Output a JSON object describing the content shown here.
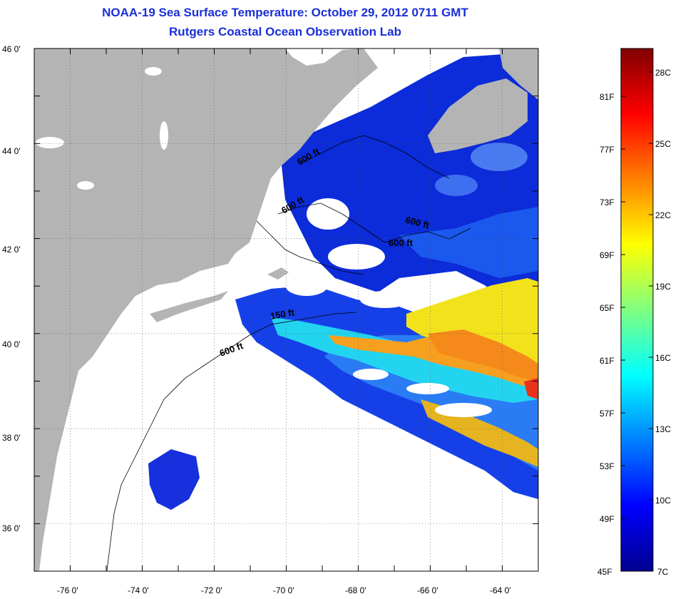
{
  "title": "NOAA-19 Sea Surface Temperature:  October 29, 2012 0711 GMT",
  "subtitle": "Rutgers Coastal Ocean Observation Lab",
  "map": {
    "lon_range": [
      -77,
      -63
    ],
    "lat_range": [
      35,
      46
    ],
    "lon_ticks": [
      "-76 0'",
      "-74 0'",
      "-72 0'",
      "-70 0'",
      "-68 0'",
      "-66 0'",
      "-64 0'"
    ],
    "lat_ticks": [
      "46 0'",
      "44 0'",
      "42 0'",
      "40 0'",
      "38 0'",
      "36 0'"
    ],
    "land_color": "#b4b4b4",
    "cloud_color": "#ffffff",
    "contour_labels": [
      "600 ft",
      "600 ft",
      "600 ft",
      "600 ft",
      "150 ft",
      "600 ft"
    ]
  },
  "colorbar": {
    "fahrenheit_labels": [
      "81F",
      "77F",
      "73F",
      "69F",
      "65F",
      "61F",
      "57F",
      "53F",
      "49F",
      "45F"
    ],
    "celsius_labels": [
      "28C",
      "25C",
      "22C",
      "19C",
      "16C",
      "13C",
      "10C",
      "7C"
    ],
    "range_celsius": [
      7,
      29
    ],
    "colors": [
      "#00008f",
      "#0000ff",
      "#0080ff",
      "#00ffff",
      "#80ff80",
      "#ffff00",
      "#ff8000",
      "#ff0000",
      "#800000"
    ]
  }
}
